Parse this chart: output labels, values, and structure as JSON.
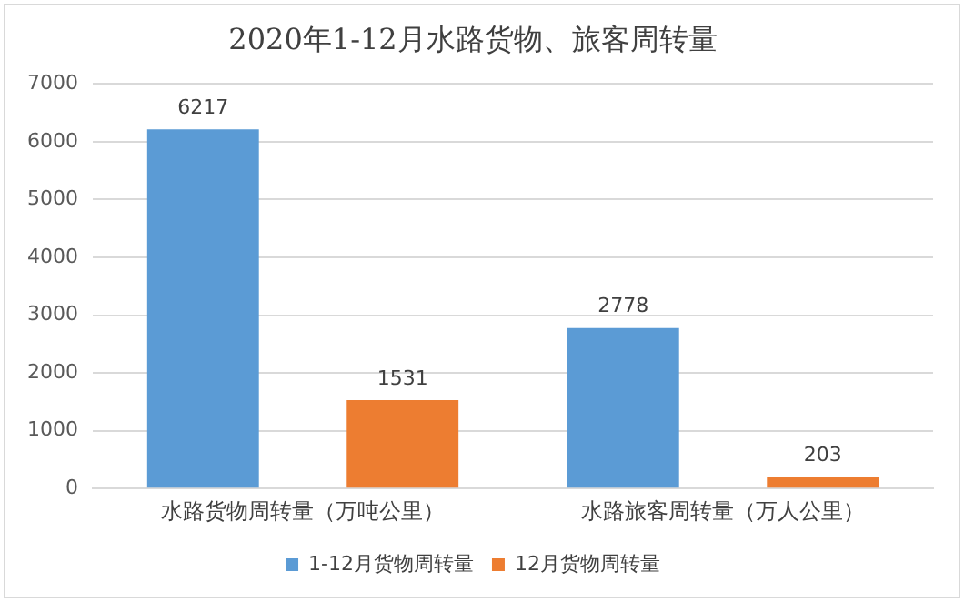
{
  "chart_data": {
    "type": "bar",
    "title": "2020年1-12月水路货物、旅客周转量",
    "categories": [
      "水路货物周转量（万吨公里）",
      "水路旅客周转量（万人公里）"
    ],
    "series": [
      {
        "name": "1-12月货物周转量",
        "color": "#5b9bd5",
        "values": [
          6217,
          2778
        ]
      },
      {
        "name": "12月货物周转量",
        "color": "#ed7d31",
        "values": [
          1531,
          203
        ]
      }
    ],
    "ylim": [
      0,
      7000
    ],
    "yticks": [
      0,
      1000,
      2000,
      3000,
      4000,
      5000,
      6000,
      7000
    ],
    "grid": "y",
    "legend": "bottom",
    "data_labels": true
  }
}
